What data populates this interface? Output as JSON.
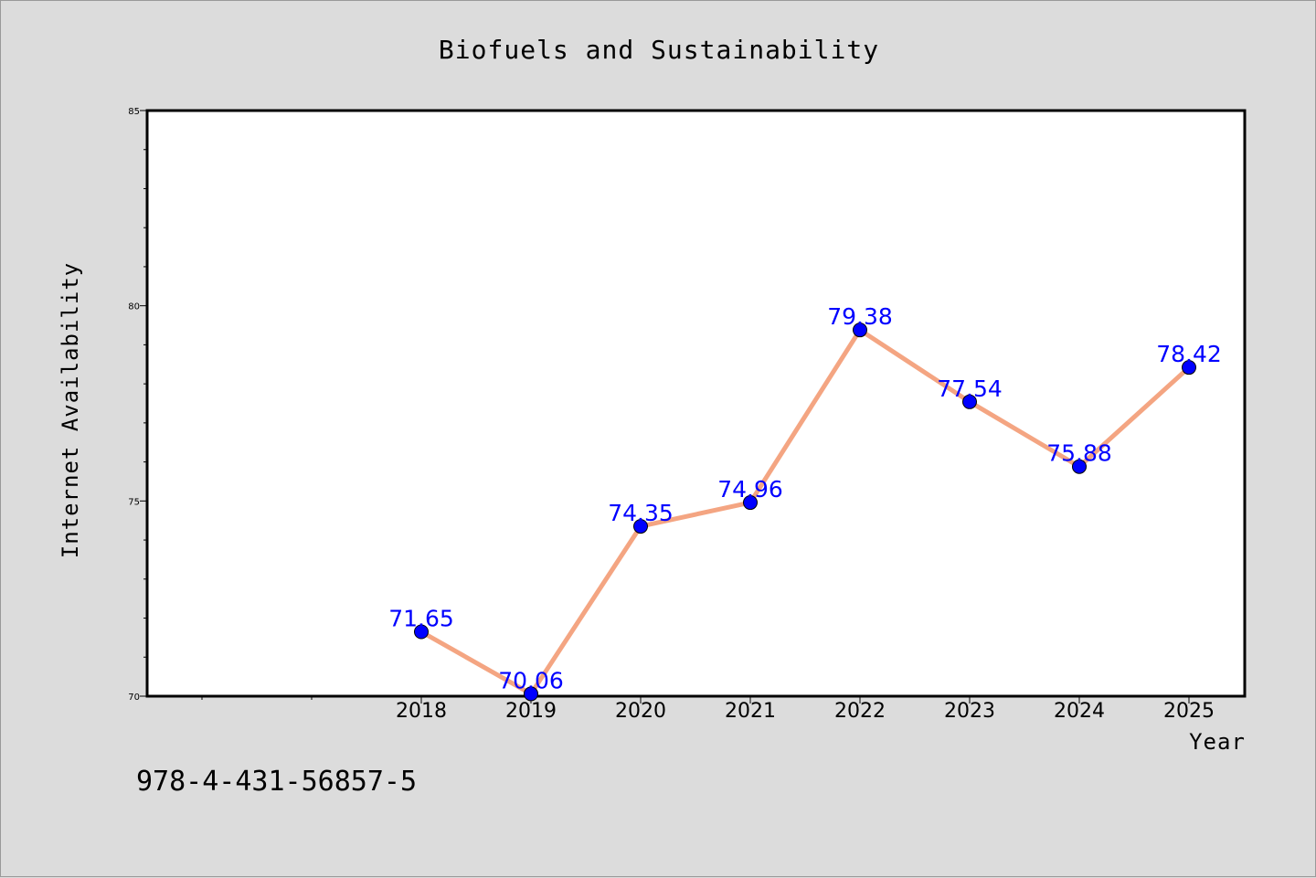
{
  "chart_data": {
    "type": "line",
    "title": "Biofuels and Sustainability",
    "xlabel": "Year",
    "ylabel": "Internet Availability",
    "categories": [
      "2018",
      "2019",
      "2020",
      "2021",
      "2022",
      "2023",
      "2024",
      "2025"
    ],
    "x_tick_labels": [
      "2018",
      "2019",
      "2020",
      "2021",
      "2022",
      "2023",
      "2024",
      "2025"
    ],
    "series": [
      {
        "values": [
          71.65,
          70.06,
          74.35,
          74.96,
          79.38,
          77.54,
          75.88,
          78.42
        ],
        "labels": [
          "71.65",
          "70.06",
          "74.35",
          "74.96",
          "79.38",
          "77.54",
          "75.88",
          "78.42"
        ],
        "line_color": "#f4a582",
        "marker_color": "#0000ff",
        "label_color": "#0000ff"
      }
    ],
    "ylim": [
      70,
      85
    ],
    "y_tick_labels": [
      "70",
      "75",
      "80",
      "85"
    ],
    "grid": false,
    "legend": "none"
  },
  "annotation": {
    "text": "978-4-431-56857-5"
  },
  "colors": {
    "background": "#dcdcdc",
    "plot_background": "#ffffff"
  }
}
